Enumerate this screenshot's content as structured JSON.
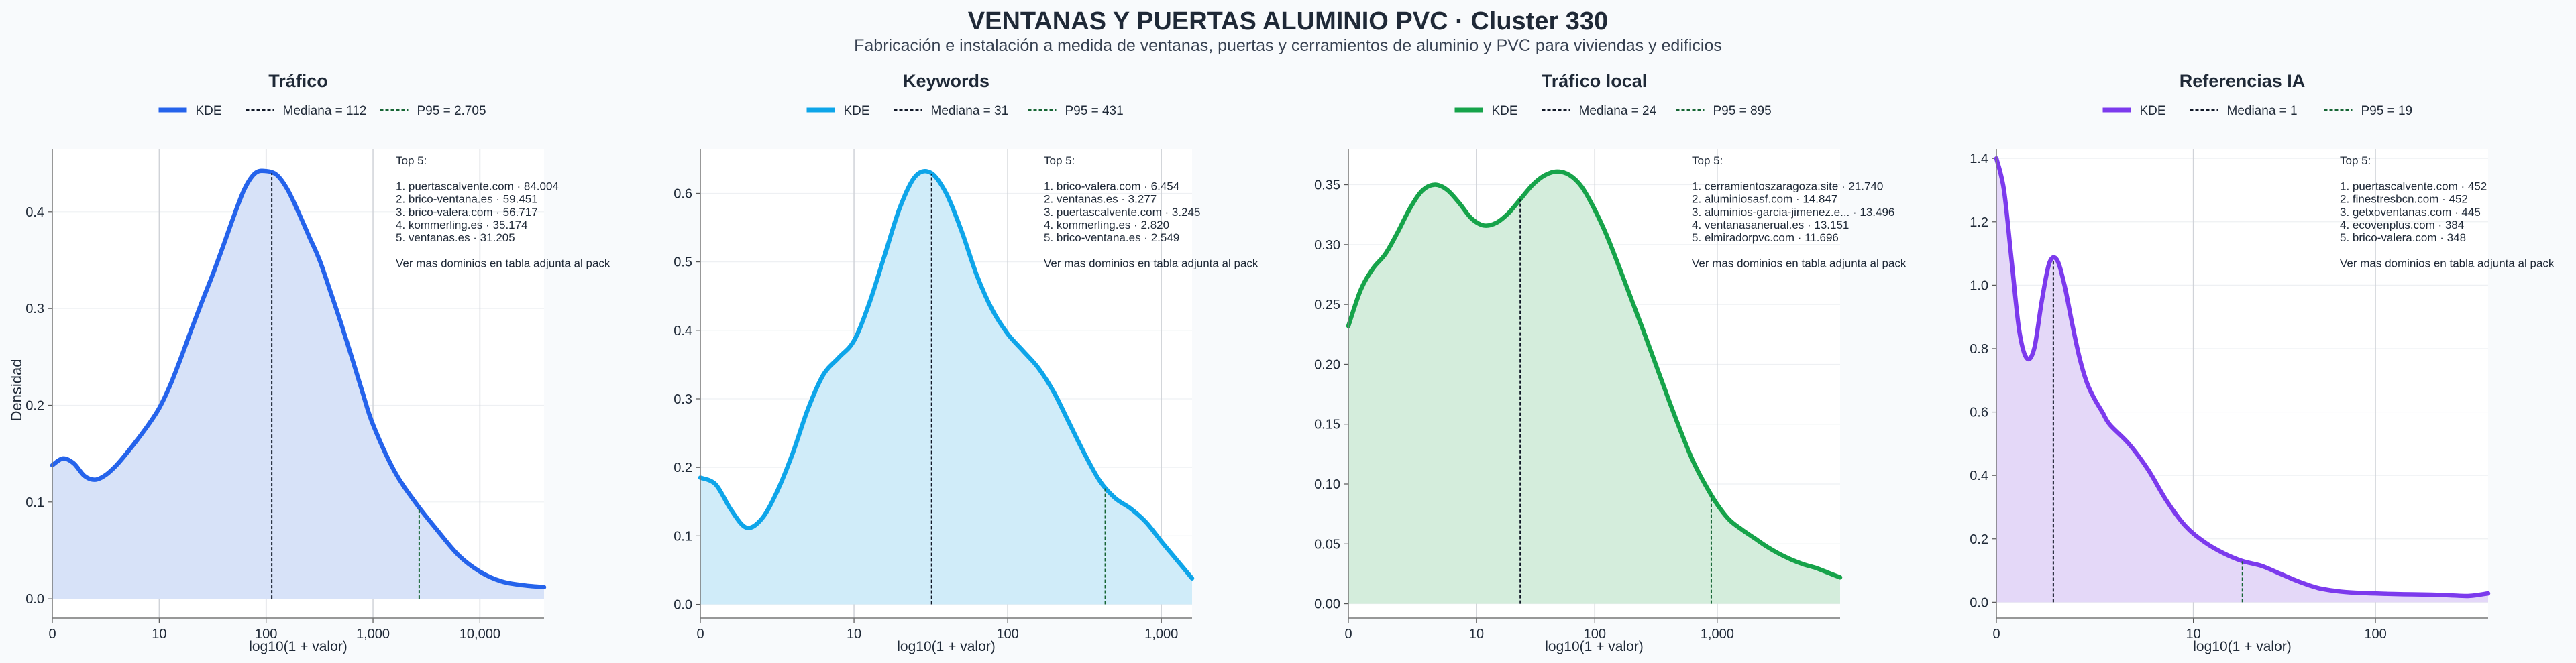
{
  "figure": {
    "title": "VENTANAS Y PUERTAS ALUMINIO PVC · Cluster 330",
    "subtitle": "Fabricación e instalación a medida de ventanas, puertas y cerramientos de aluminio y PVC para viviendas y edificios",
    "ylabel": "Densidad",
    "xlabel": "log10(1 + valor)",
    "top_label": "Top 5:",
    "more_note": "Ver mas dominios en tabla adjunta al pack",
    "kde_label": "KDE"
  },
  "chart_data": [
    {
      "type": "area",
      "title": "Tráfico",
      "color": "#2563eb",
      "fill": "#d7e2f8",
      "x_scale": "log10(1 + valor)",
      "xlim": [
        0,
        4.6
      ],
      "ylim": [
        -0.02,
        0.465
      ],
      "x_ticks": [
        {
          "value": 0,
          "label": "0"
        },
        {
          "value": 1,
          "label": "10"
        },
        {
          "value": 2,
          "label": "100"
        },
        {
          "value": 3,
          "label": "1,000"
        },
        {
          "value": 4,
          "label": "10,000"
        }
      ],
      "y_ticks": [
        {
          "value": 0,
          "label": "0.0"
        },
        {
          "value": 0.1,
          "label": "0.1"
        },
        {
          "value": 0.2,
          "label": "0.2"
        },
        {
          "value": 0.3,
          "label": "0.3"
        },
        {
          "value": 0.4,
          "label": "0.4"
        }
      ],
      "kde_x": [
        0,
        0.1,
        0.2,
        0.3,
        0.4,
        0.5,
        0.6,
        0.7,
        0.8,
        0.9,
        1.0,
        1.1,
        1.2,
        1.3,
        1.4,
        1.5,
        1.6,
        1.7,
        1.8,
        1.9,
        2.0,
        2.1,
        2.2,
        2.3,
        2.4,
        2.5,
        2.6,
        2.7,
        2.8,
        2.9,
        3.0,
        3.2,
        3.4,
        3.6,
        3.8,
        4.0,
        4.2,
        4.4,
        4.6
      ],
      "kde_y": [
        0.138,
        0.145,
        0.14,
        0.127,
        0.123,
        0.128,
        0.138,
        0.151,
        0.165,
        0.18,
        0.197,
        0.22,
        0.248,
        0.278,
        0.307,
        0.335,
        0.365,
        0.396,
        0.424,
        0.44,
        0.442,
        0.438,
        0.423,
        0.4,
        0.375,
        0.35,
        0.318,
        0.285,
        0.25,
        0.214,
        0.18,
        0.132,
        0.099,
        0.071,
        0.045,
        0.028,
        0.018,
        0.014,
        0.012
      ],
      "median": {
        "x": 2.053,
        "label": "Mediana = 112"
      },
      "p95": {
        "x": 3.432,
        "label": "P95 = 2.705"
      },
      "top5": [
        "1. puertascalvente.com · 84.004",
        "2. brico-ventana.es · 59.451",
        "3. brico-valera.com · 56.717",
        "4. kommerling.es · 35.174",
        "5. ventanas.es · 31.205"
      ]
    },
    {
      "type": "area",
      "title": "Keywords",
      "color": "#0ea5e9",
      "fill": "#d0ecf9",
      "x_scale": "log10(1 + valor)",
      "xlim": [
        0,
        3.2
      ],
      "ylim": [
        -0.02,
        0.665
      ],
      "x_ticks": [
        {
          "value": 0,
          "label": "0"
        },
        {
          "value": 1,
          "label": "10"
        },
        {
          "value": 2,
          "label": "100"
        },
        {
          "value": 3,
          "label": "1,000"
        }
      ],
      "y_ticks": [
        {
          "value": 0,
          "label": "0.0"
        },
        {
          "value": 0.1,
          "label": "0.1"
        },
        {
          "value": 0.2,
          "label": "0.2"
        },
        {
          "value": 0.3,
          "label": "0.3"
        },
        {
          "value": 0.4,
          "label": "0.4"
        },
        {
          "value": 0.5,
          "label": "0.5"
        },
        {
          "value": 0.6,
          "label": "0.6"
        }
      ],
      "kde_x": [
        0,
        0.1,
        0.2,
        0.3,
        0.4,
        0.5,
        0.6,
        0.7,
        0.8,
        0.9,
        1.0,
        1.1,
        1.2,
        1.3,
        1.4,
        1.5,
        1.6,
        1.7,
        1.8,
        1.9,
        2.0,
        2.1,
        2.2,
        2.3,
        2.4,
        2.5,
        2.6,
        2.7,
        2.8,
        2.9,
        3.0,
        3.1,
        3.2
      ],
      "kde_y": [
        0.185,
        0.175,
        0.138,
        0.112,
        0.125,
        0.165,
        0.22,
        0.285,
        0.335,
        0.36,
        0.385,
        0.44,
        0.51,
        0.58,
        0.625,
        0.63,
        0.6,
        0.545,
        0.48,
        0.43,
        0.395,
        0.37,
        0.345,
        0.31,
        0.265,
        0.22,
        0.18,
        0.155,
        0.14,
        0.12,
        0.092,
        0.065,
        0.038
      ],
      "median": {
        "x": 1.505,
        "label": "Mediana = 31"
      },
      "p95": {
        "x": 2.635,
        "label": "P95 = 431"
      },
      "top5": [
        "1. brico-valera.com · 6.454",
        "2. ventanas.es · 3.277",
        "3. puertascalvente.com · 3.245",
        "4. kommerling.es · 2.820",
        "5. brico-ventana.es · 2.549"
      ]
    },
    {
      "type": "area",
      "title": "Tráfico local",
      "color": "#16a34a",
      "fill": "#d4eddc",
      "x_scale": "log10(1 + valor)",
      "xlim": [
        0,
        4.0
      ],
      "ylim": [
        -0.012,
        0.38
      ],
      "x_ticks": [
        {
          "value": 0,
          "label": "0"
        },
        {
          "value": 1.0414,
          "label": "10"
        },
        {
          "value": 2.0043,
          "label": "100"
        },
        {
          "value": 3.0004,
          "label": "1,000"
        }
      ],
      "y_ticks": [
        {
          "value": 0,
          "label": "0.00"
        },
        {
          "value": 0.05,
          "label": "0.05"
        },
        {
          "value": 0.1,
          "label": "0.10"
        },
        {
          "value": 0.15,
          "label": "0.15"
        },
        {
          "value": 0.2,
          "label": "0.20"
        },
        {
          "value": 0.25,
          "label": "0.25"
        },
        {
          "value": 0.3,
          "label": "0.30"
        },
        {
          "value": 0.35,
          "label": "0.35"
        }
      ],
      "kde_x": [
        0,
        0.1,
        0.2,
        0.3,
        0.4,
        0.5,
        0.6,
        0.7,
        0.8,
        0.9,
        1.0,
        1.1,
        1.2,
        1.3,
        1.4,
        1.5,
        1.6,
        1.7,
        1.8,
        1.9,
        2.0,
        2.1,
        2.2,
        2.3,
        2.4,
        2.5,
        2.6,
        2.7,
        2.8,
        2.9,
        3.0,
        3.1,
        3.2,
        3.3,
        3.4,
        3.5,
        3.6,
        3.7,
        3.8,
        3.9,
        4.0
      ],
      "kde_y": [
        0.232,
        0.262,
        0.28,
        0.292,
        0.31,
        0.33,
        0.345,
        0.35,
        0.346,
        0.335,
        0.322,
        0.316,
        0.318,
        0.326,
        0.338,
        0.35,
        0.358,
        0.361,
        0.358,
        0.348,
        0.33,
        0.308,
        0.282,
        0.255,
        0.228,
        0.2,
        0.172,
        0.145,
        0.12,
        0.1,
        0.083,
        0.07,
        0.062,
        0.055,
        0.048,
        0.042,
        0.037,
        0.033,
        0.03,
        0.026,
        0.022
      ],
      "median": {
        "x": 1.398,
        "label": "Mediana = 24"
      },
      "p95": {
        "x": 2.952,
        "label": "P95 = 895"
      },
      "top5": [
        "1. cerramientoszaragoza.site · 21.740",
        "2. aluminiosasf.com · 14.847",
        "3. aluminios-garcia-jimenez.e... · 13.496",
        "4. ventanasanerual.es · 13.151",
        "5. elmiradorpvc.com · 11.696"
      ]
    },
    {
      "type": "area",
      "title": "Referencias IA",
      "color": "#7c3aed",
      "fill": "#e4d8f8",
      "x_scale": "log10(1 + valor)",
      "xlim": [
        0,
        2.6
      ],
      "ylim": [
        -0.05,
        1.43
      ],
      "x_ticks": [
        {
          "value": 0,
          "label": "0"
        },
        {
          "value": 1.0414,
          "label": "10"
        },
        {
          "value": 2.0043,
          "label": "100"
        }
      ],
      "y_ticks": [
        {
          "value": 0,
          "label": "0.0"
        },
        {
          "value": 0.2,
          "label": "0.2"
        },
        {
          "value": 0.4,
          "label": "0.4"
        },
        {
          "value": 0.6,
          "label": "0.6"
        },
        {
          "value": 0.8,
          "label": "0.8"
        },
        {
          "value": 1.0,
          "label": "1.0"
        },
        {
          "value": 1.2,
          "label": "1.2"
        },
        {
          "value": 1.4,
          "label": "1.4"
        }
      ],
      "kde_x": [
        0,
        0.04,
        0.08,
        0.12,
        0.16,
        0.2,
        0.24,
        0.28,
        0.32,
        0.36,
        0.4,
        0.44,
        0.48,
        0.52,
        0.56,
        0.6,
        0.7,
        0.8,
        0.9,
        1.0,
        1.1,
        1.2,
        1.3,
        1.4,
        1.5,
        1.6,
        1.7,
        1.8,
        1.9,
        2.0,
        2.1,
        2.2,
        2.3,
        2.4,
        2.5,
        2.6
      ],
      "kde_y": [
        1.4,
        1.3,
        1.08,
        0.86,
        0.77,
        0.8,
        0.95,
        1.07,
        1.08,
        1.0,
        0.88,
        0.77,
        0.69,
        0.64,
        0.6,
        0.56,
        0.5,
        0.42,
        0.32,
        0.24,
        0.19,
        0.155,
        0.13,
        0.115,
        0.09,
        0.065,
        0.045,
        0.035,
        0.03,
        0.028,
        0.026,
        0.025,
        0.024,
        0.022,
        0.02,
        0.028
      ],
      "median": {
        "x": 0.301,
        "label": "Mediana = 1"
      },
      "p95": {
        "x": 1.301,
        "label": "P95 = 19"
      },
      "top5": [
        "1. puertascalvente.com · 452",
        "2. finestresbcn.com · 452",
        "3. getxoventanas.com · 445",
        "4. ecovenplus.com · 384",
        "5. brico-valera.com · 348"
      ]
    }
  ]
}
